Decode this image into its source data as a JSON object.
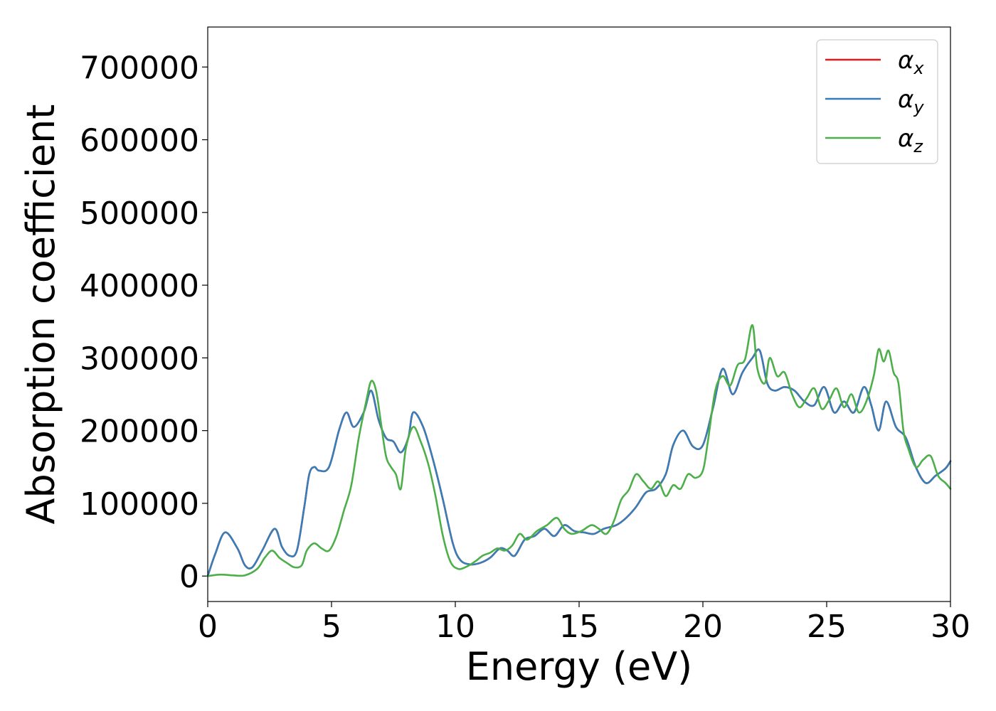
{
  "chart_data": {
    "type": "line",
    "xlabel": "Energy (eV)",
    "ylabel": "Absorption coefficient",
    "xlim": [
      0,
      30
    ],
    "ylim": [
      -35000,
      755000
    ],
    "xticks": [
      0,
      5,
      10,
      15,
      20,
      25,
      30
    ],
    "yticks": [
      0,
      100000,
      200000,
      300000,
      400000,
      500000,
      600000,
      700000
    ],
    "grid": false,
    "legend_position": "top-right",
    "series": [
      {
        "name": "αx",
        "symbol": "α",
        "subscript": "x",
        "color": "#e41a1c",
        "x": [
          0,
          0.3,
          0.7,
          1.2,
          1.5,
          1.8,
          2.2,
          2.7,
          3.0,
          3.3,
          3.6,
          3.9,
          4.1,
          4.3,
          4.5,
          4.9,
          5.3,
          5.6,
          5.9,
          6.3,
          6.6,
          6.9,
          7.2,
          7.5,
          7.8,
          8.1,
          8.3,
          8.7,
          9.1,
          9.5,
          9.9,
          10.2,
          10.6,
          11.0,
          11.4,
          11.8,
          12.1,
          12.4,
          12.8,
          13.2,
          13.6,
          14.0,
          14.4,
          14.8,
          15.2,
          15.6,
          16.0,
          16.5,
          16.9,
          17.3,
          17.7,
          18.1,
          18.5,
          18.8,
          19.2,
          19.6,
          20.0,
          20.4,
          20.8,
          21.2,
          21.6,
          22.0,
          22.3,
          22.6,
          22.9,
          23.3,
          23.7,
          24.1,
          24.5,
          24.9,
          25.3,
          25.7,
          26.1,
          26.5,
          26.8,
          27.1,
          27.4,
          27.8,
          28.2,
          28.6,
          29.0,
          29.4,
          29.8,
          30.0
        ],
        "y": [
          0,
          30000,
          60000,
          38000,
          15000,
          12000,
          35000,
          65000,
          40000,
          28000,
          35000,
          95000,
          140000,
          150000,
          145000,
          150000,
          200000,
          225000,
          205000,
          225000,
          255000,
          215000,
          190000,
          185000,
          170000,
          190000,
          225000,
          205000,
          160000,
          105000,
          45000,
          22000,
          16000,
          18000,
          25000,
          38000,
          35000,
          28000,
          50000,
          55000,
          65000,
          55000,
          70000,
          62000,
          60000,
          58000,
          65000,
          70000,
          80000,
          95000,
          115000,
          120000,
          140000,
          180000,
          200000,
          178000,
          180000,
          230000,
          285000,
          250000,
          280000,
          300000,
          310000,
          265000,
          255000,
          260000,
          255000,
          240000,
          235000,
          260000,
          225000,
          240000,
          225000,
          260000,
          235000,
          200000,
          240000,
          205000,
          190000,
          150000,
          128000,
          138000,
          148000,
          158000
        ]
      },
      {
        "name": "αy",
        "symbol": "α",
        "subscript": "y",
        "color": "#377eb8",
        "x": [
          0,
          0.3,
          0.7,
          1.2,
          1.5,
          1.8,
          2.2,
          2.7,
          3.0,
          3.3,
          3.6,
          3.9,
          4.1,
          4.3,
          4.5,
          4.9,
          5.3,
          5.6,
          5.9,
          6.3,
          6.6,
          6.9,
          7.2,
          7.5,
          7.8,
          8.1,
          8.3,
          8.7,
          9.1,
          9.5,
          9.9,
          10.2,
          10.6,
          11.0,
          11.4,
          11.8,
          12.1,
          12.4,
          12.8,
          13.2,
          13.6,
          14.0,
          14.4,
          14.8,
          15.2,
          15.6,
          16.0,
          16.5,
          16.9,
          17.3,
          17.7,
          18.1,
          18.5,
          18.8,
          19.2,
          19.6,
          20.0,
          20.4,
          20.8,
          21.2,
          21.6,
          22.0,
          22.3,
          22.6,
          22.9,
          23.3,
          23.7,
          24.1,
          24.5,
          24.9,
          25.3,
          25.7,
          26.1,
          26.5,
          26.8,
          27.1,
          27.4,
          27.8,
          28.2,
          28.6,
          29.0,
          29.4,
          29.8,
          30.0
        ],
        "y": [
          0,
          30000,
          60000,
          38000,
          15000,
          12000,
          35000,
          65000,
          40000,
          28000,
          35000,
          95000,
          140000,
          150000,
          145000,
          150000,
          200000,
          225000,
          205000,
          225000,
          255000,
          215000,
          190000,
          185000,
          170000,
          190000,
          225000,
          205000,
          160000,
          105000,
          45000,
          22000,
          16000,
          18000,
          25000,
          38000,
          35000,
          28000,
          50000,
          55000,
          65000,
          55000,
          70000,
          62000,
          60000,
          58000,
          65000,
          70000,
          80000,
          95000,
          115000,
          120000,
          140000,
          180000,
          200000,
          178000,
          180000,
          230000,
          285000,
          250000,
          280000,
          300000,
          310000,
          265000,
          255000,
          260000,
          255000,
          240000,
          235000,
          260000,
          225000,
          240000,
          225000,
          260000,
          235000,
          200000,
          240000,
          205000,
          190000,
          150000,
          128000,
          138000,
          148000,
          158000
        ]
      },
      {
        "name": "αz",
        "symbol": "α",
        "subscript": "z",
        "color": "#4daf4a",
        "x": [
          0,
          0.5,
          1.0,
          1.5,
          2.0,
          2.3,
          2.6,
          2.9,
          3.2,
          3.5,
          3.8,
          4.0,
          4.3,
          4.6,
          4.9,
          5.2,
          5.5,
          5.8,
          6.1,
          6.4,
          6.6,
          6.8,
          7.0,
          7.2,
          7.4,
          7.6,
          7.8,
          8.0,
          8.3,
          8.6,
          8.9,
          9.2,
          9.5,
          9.8,
          10.1,
          10.4,
          10.8,
          11.1,
          11.4,
          11.7,
          12.0,
          12.3,
          12.6,
          12.9,
          13.3,
          13.7,
          14.1,
          14.4,
          14.7,
          15.1,
          15.5,
          15.8,
          16.1,
          16.4,
          16.7,
          17.0,
          17.3,
          17.6,
          17.9,
          18.2,
          18.5,
          18.8,
          19.1,
          19.4,
          19.7,
          20.0,
          20.2,
          20.5,
          20.8,
          21.1,
          21.4,
          21.7,
          22.0,
          22.2,
          22.5,
          22.7,
          23.0,
          23.3,
          23.6,
          23.9,
          24.2,
          24.5,
          24.8,
          25.1,
          25.4,
          25.7,
          26.0,
          26.3,
          26.6,
          26.9,
          27.1,
          27.3,
          27.5,
          27.7,
          27.9,
          28.1,
          28.3,
          28.6,
          28.9,
          29.2,
          29.5,
          29.8,
          30.0
        ],
        "y": [
          0,
          2000,
          1000,
          1000,
          10000,
          25000,
          35000,
          25000,
          18000,
          12000,
          15000,
          35000,
          45000,
          38000,
          35000,
          55000,
          90000,
          125000,
          190000,
          240000,
          268000,
          255000,
          210000,
          165000,
          150000,
          140000,
          120000,
          175000,
          205000,
          185000,
          155000,
          110000,
          55000,
          20000,
          10000,
          12000,
          20000,
          28000,
          32000,
          38000,
          35000,
          42000,
          58000,
          50000,
          62000,
          70000,
          80000,
          65000,
          58000,
          62000,
          70000,
          65000,
          58000,
          75000,
          105000,
          118000,
          140000,
          130000,
          120000,
          130000,
          110000,
          125000,
          120000,
          140000,
          135000,
          145000,
          185000,
          255000,
          275000,
          262000,
          290000,
          298000,
          345000,
          285000,
          265000,
          300000,
          275000,
          280000,
          250000,
          232000,
          245000,
          258000,
          230000,
          242000,
          258000,
          232000,
          250000,
          225000,
          240000,
          275000,
          312000,
          295000,
          310000,
          280000,
          265000,
          200000,
          175000,
          150000,
          160000,
          165000,
          138000,
          128000,
          120000
        ]
      }
    ]
  }
}
